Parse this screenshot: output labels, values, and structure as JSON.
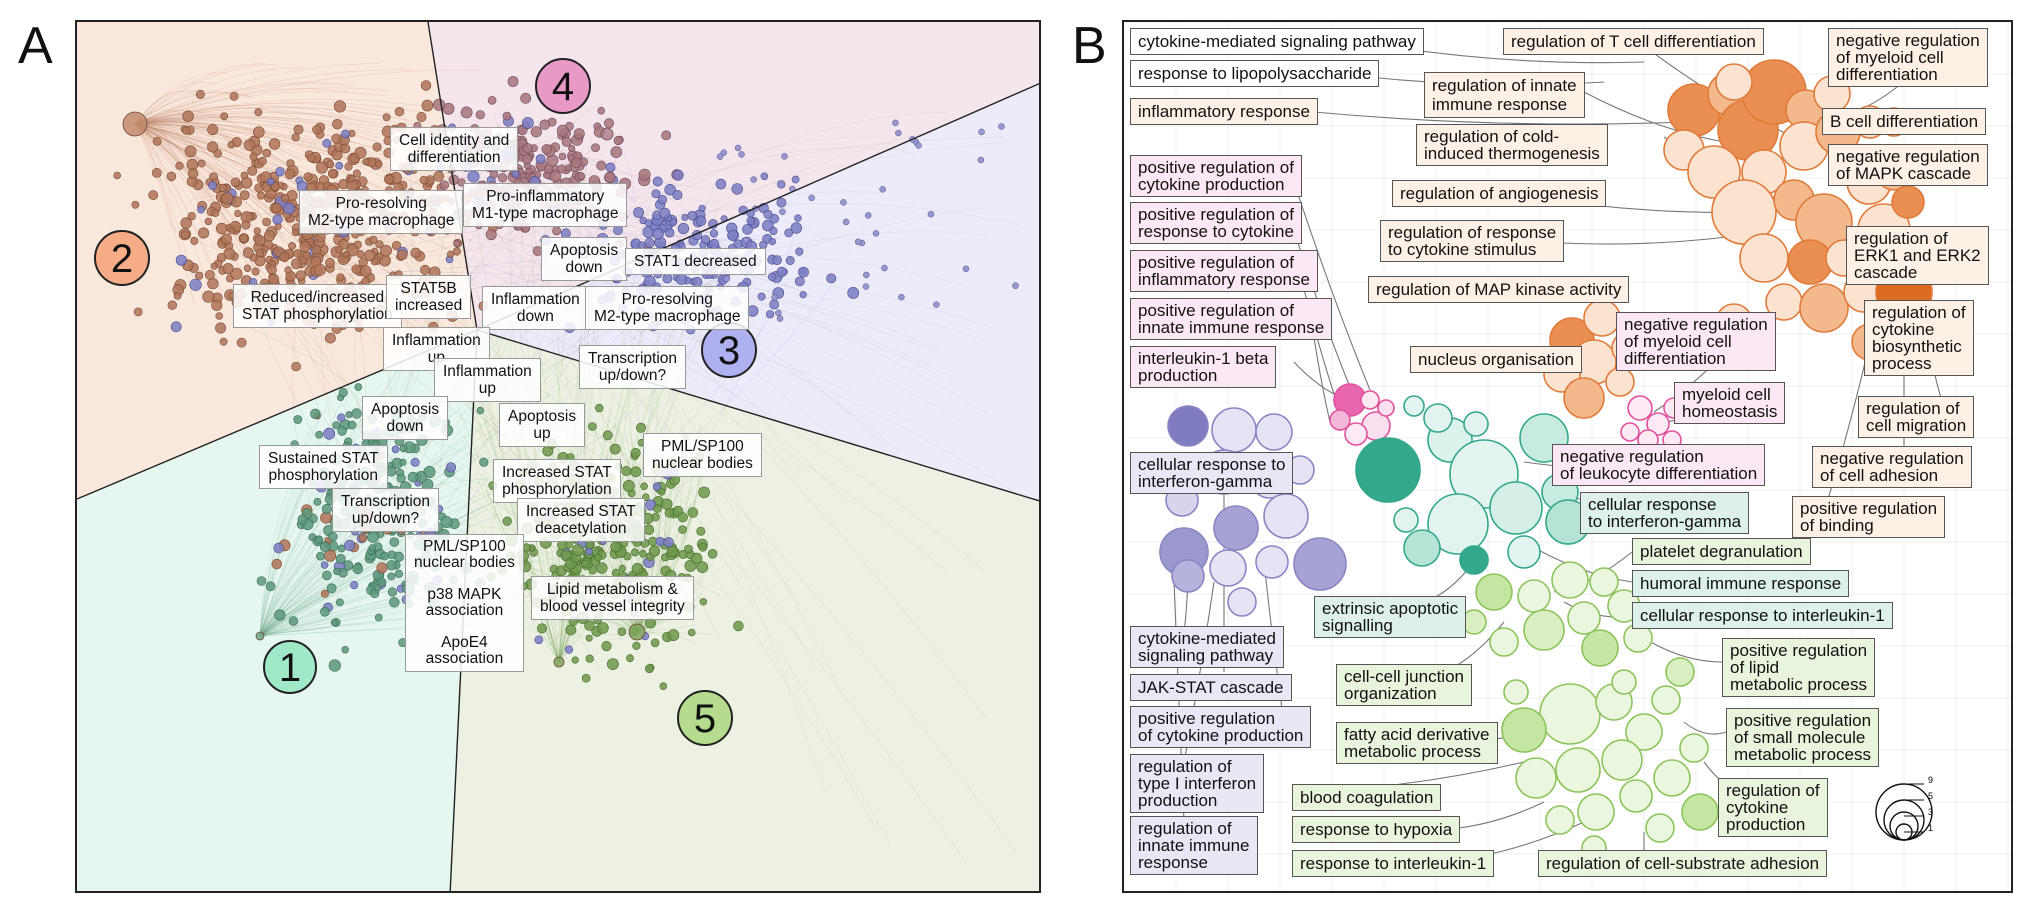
{
  "panel_a": {
    "letter": "A",
    "regions": [
      {
        "id": "1",
        "color": "#8fe0c0",
        "fill": "#e6f7ef"
      },
      {
        "id": "2",
        "color": "#f4a57f",
        "fill": "#fbe8dc"
      },
      {
        "id": "3",
        "color": "#a9a9ee",
        "fill": "#ecebfa"
      },
      {
        "id": "4",
        "color": "#e58ac0",
        "fill": "#f5e6ee"
      },
      {
        "id": "5",
        "color": "#b3d58b",
        "fill": "#ecf1e3"
      }
    ],
    "annotations": {
      "cell_identity": "Cell identity and\ndifferentiation",
      "pro_resolving_m2": "Pro-resolving\nM2-type macrophage",
      "pro_inflammatory_m1": "Pro-inflammatory\nM1-type macrophage",
      "apoptosis_down_4": "Apoptosis\ndown",
      "stat1_decreased": "STAT1 decreased",
      "inflammation_down": "Inflammation\ndown",
      "pro_resolving_m2_3": "Pro-resolving\nM2-type macrophage",
      "reduced_increased_stat": "Reduced/increased\nSTAT phosphorylation",
      "stat5b_increased": "STAT5B\nincreased",
      "inflammation_up_1": "Inflammation\nup",
      "inflammation_up_2": "Inflammation\nup",
      "transcription_3": "Transcription\nup/down?",
      "apoptosis_down_1": "Apoptosis\ndown",
      "apoptosis_up_5": "Apoptosis\nup",
      "sustained_stat": "Sustained STAT\nphosphorylation",
      "pml_sp100_5": "PML/SP100\nnuclear bodies",
      "increased_stat_phos": "Increased STAT\nphosphorylation",
      "transcription_1": "Transcription\nup/down?",
      "increased_stat_deacet": "Increased STAT\ndeacetylation",
      "pml_block": "PML/SP100\nnuclear bodies\n\np38 MAPK\nassociation\n\nApoE4\nassociation",
      "lipid_metabolism": "Lipid metabolism &\nblood vessel integrity"
    }
  },
  "panel_b": {
    "letter": "B",
    "labels": {
      "cytokine_mediated_top": "cytokine-mediated signaling pathway",
      "response_lps": "response to lipopolysaccharide",
      "inflammatory_response": "inflammatory response",
      "reg_t_cell_diff": "regulation of T cell differentiation",
      "reg_innate_immune_top": "regulation of innate\nimmune response",
      "neg_reg_myeloid_top": "negative regulation\nof myeloid cell\ndifferentiation",
      "b_cell_diff": "B cell differentiation",
      "reg_cold_induced": "regulation of cold-\ninduced thermogenesis",
      "neg_reg_mapk": "negative regulation\nof MAPK cascade",
      "pos_reg_cytokine_prod_pink": "positive regulation of\ncytokine production",
      "reg_angiogenesis": "regulation of angiogenesis",
      "pos_reg_resp_cytokine": "positive regulation of\nresponse to cytokine",
      "reg_resp_cytokine_stim": "regulation of response\nto cytokine stimulus",
      "reg_erk": "regulation of\nERK1 and ERK2\ncascade",
      "pos_reg_inflammatory": "positive regulation of\ninflammatory response",
      "reg_map_kinase": "regulation of MAP kinase activity",
      "pos_reg_innate": "positive regulation of\ninnate immune response",
      "reg_cytokine_biosynth": "regulation of\ncytokine\nbiosynthetic\nprocess",
      "neg_reg_myeloid_mid": "negative regulation\nof myeloid cell\ndifferentiation",
      "il1_beta": "interleukin-1 beta\nproduction",
      "nucleus_org": "nucleus organisation",
      "myeloid_homeostasis": "myeloid cell\nhomeostasis",
      "reg_cell_migration": "regulation of\ncell migration",
      "cell_resp_ifng_purple": "cellular response to\ninterferon-gamma",
      "neg_reg_leukocyte": "negative regulation\nof leukocyte differentiation",
      "neg_reg_cell_adhesion": "negative regulation\nof cell adhesion",
      "cell_resp_ifng_teal": "cellular response\nto interferon-gamma",
      "pos_reg_binding": "positive regulation\nof binding",
      "platelet_degran": "platelet degranulation",
      "humoral_immune": "humoral immune response",
      "cell_resp_il1": "cellular response to interleukin-1",
      "extrinsic_apoptotic": "extrinsic apoptotic\nsignalling",
      "cytokine_mediated_purple": "cytokine-mediated\nsignaling pathway",
      "jak_stat": "JAK-STAT cascade",
      "pos_reg_cytokine_prod_purple": "positive regulation\nof cytokine production",
      "cell_cell_junction": "cell-cell junction\norganization",
      "pos_reg_lipid": "positive regulation\nof lipid\nmetabolic process",
      "fatty_acid": "fatty acid derivative\nmetabolic process",
      "pos_reg_small_mol": "positive regulation\nof small molecule\nmetabolic process",
      "reg_type1_ifn": "regulation of\ntype I interferon\nproduction",
      "blood_coag": "blood coagulation",
      "resp_hypoxia": "response to hypoxia",
      "reg_innate_purple": "regulation of\ninnate immune\nresponse",
      "resp_il1": "response to interleukin-1",
      "reg_cytokine_prod_green": "regulation of\ncytokine\nproduction",
      "reg_cell_substrate": "regulation of cell-substrate adhesion"
    },
    "size_legend": {
      "values": [
        "9",
        "5",
        "3",
        "1"
      ]
    }
  },
  "colors": {
    "orange": "#e07b39",
    "pink": "#e0529c",
    "purple": "#8a86c4",
    "teal": "#33a88a",
    "green": "#8cc45c",
    "brown_nodes": "#b0765a"
  }
}
